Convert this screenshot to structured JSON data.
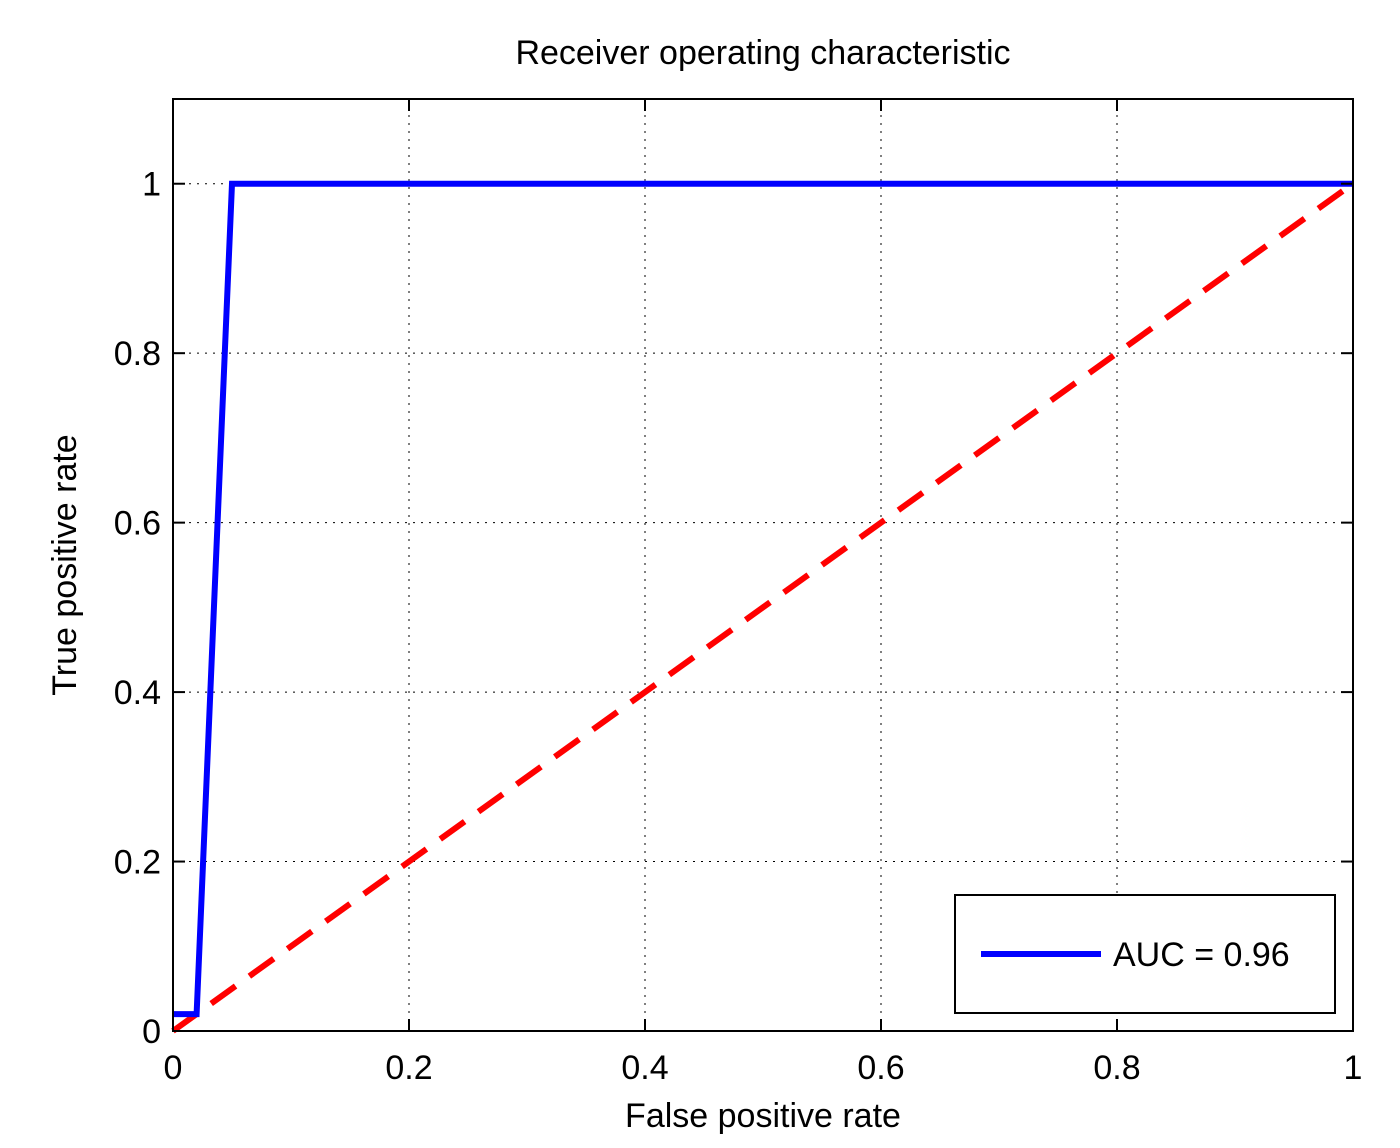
{
  "chart_data": {
    "type": "line",
    "title": "Receiver operating characteristic",
    "xlabel": "False positive rate",
    "ylabel": "True positive rate",
    "xlim": [
      0,
      1
    ],
    "ylim": [
      0,
      1.1
    ],
    "xticks": [
      0,
      0.2,
      0.4,
      0.6,
      0.8,
      1
    ],
    "yticks": [
      0,
      0.2,
      0.4,
      0.6,
      0.8,
      1
    ],
    "xtick_labels": [
      "0",
      "0.2",
      "0.4",
      "0.6",
      "0.8",
      "1"
    ],
    "ytick_labels": [
      "0",
      "0.2",
      "0.4",
      "0.6",
      "0.8",
      "1"
    ],
    "grid": true,
    "legend_position": "bottom-right",
    "series": [
      {
        "name": "AUC = 0.96",
        "color": "#0000ff",
        "style": "solid",
        "x": [
          0,
          0.02,
          0.05,
          1
        ],
        "y": [
          0.02,
          0.02,
          1,
          1
        ]
      },
      {
        "color": "#ff0000",
        "style": "dashed",
        "x": [
          0,
          1
        ],
        "y": [
          0,
          1
        ]
      }
    ]
  }
}
